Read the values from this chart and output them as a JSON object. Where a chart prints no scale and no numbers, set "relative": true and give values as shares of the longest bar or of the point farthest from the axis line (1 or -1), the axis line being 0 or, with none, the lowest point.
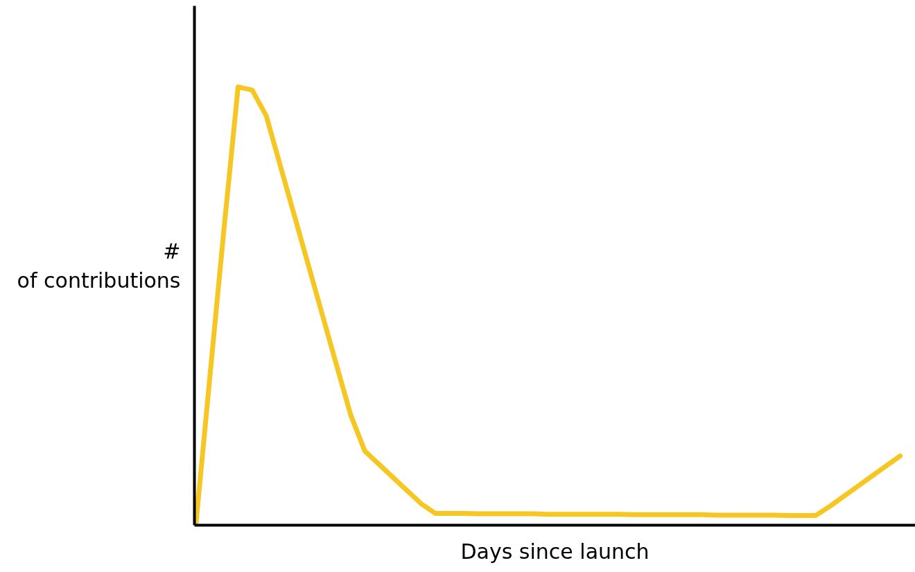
{
  "chart_data": {
    "type": "line",
    "relative": true,
    "xlabel": "Days since launch",
    "ylabel": "# of contributions",
    "marker": "none",
    "line_style": "solid",
    "categories": [
      null,
      null,
      null,
      null,
      null,
      null,
      null,
      null,
      null,
      null,
      null,
      null,
      null,
      null,
      null,
      null,
      null,
      null,
      null,
      null,
      null,
      null,
      null,
      null,
      null,
      null,
      null,
      null,
      null,
      null,
      null,
      null,
      null,
      null,
      null,
      null,
      null,
      null,
      null,
      null,
      null,
      null,
      null,
      null,
      null,
      null,
      null,
      null,
      null,
      null,
      null
    ],
    "series": [
      {
        "color": "#f6c623",
        "values": [
          0,
          0.34,
          0.677,
          1,
          0.993,
          0.934,
          0.82,
          0.706,
          0.592,
          0.478,
          0.364,
          0.251,
          0.169,
          0.139,
          0.109,
          0.079,
          0.049,
          0.027,
          0.027,
          0.027,
          0.026,
          0.026,
          0.026,
          0.026,
          0.026,
          0.025,
          0.025,
          0.025,
          0.025,
          0.025,
          0.025,
          0.024,
          0.024,
          0.024,
          0.024,
          0.024,
          0.024,
          0.023,
          0.023,
          0.023,
          0.023,
          0.023,
          0.022,
          0.022,
          0.022,
          0.043,
          0.066,
          0.089,
          0.112,
          0.135,
          0.158
        ]
      }
    ]
  }
}
